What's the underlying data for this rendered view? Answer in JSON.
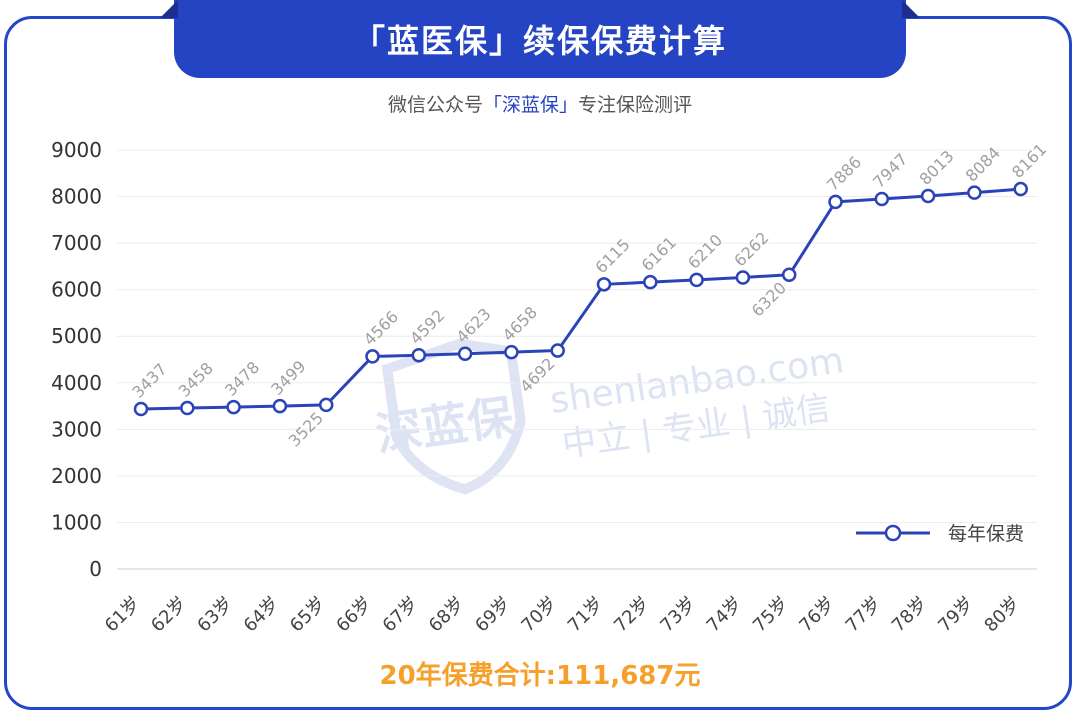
{
  "header": {
    "title": "「蓝医保」续保保费计算"
  },
  "subtitle": {
    "prefix": "微信公众号",
    "brand": "「深蓝保」",
    "suffix": "专注保险测评"
  },
  "watermark": {
    "logo_text": "深蓝保",
    "domain": "shenlanbao.com",
    "slogan": "中立 | 专业 | 诚信"
  },
  "footer": {
    "total": "20年保费合计:111,687元"
  },
  "colors": {
    "line": "#2a44b8",
    "accent": "#2544c4",
    "total": "#f5a02a"
  },
  "chart_data": {
    "type": "line",
    "categories": [
      "61岁",
      "62岁",
      "63岁",
      "64岁",
      "65岁",
      "66岁",
      "67岁",
      "68岁",
      "69岁",
      "70岁",
      "71岁",
      "72岁",
      "73岁",
      "74岁",
      "75岁",
      "76岁",
      "77岁",
      "78岁",
      "79岁",
      "80岁"
    ],
    "series": [
      {
        "name": "每年保费",
        "values": [
          3437,
          3458,
          3478,
          3499,
          3525,
          4566,
          4592,
          4623,
          4658,
          4692,
          6115,
          6161,
          6210,
          6262,
          6320,
          7886,
          7947,
          8013,
          8084,
          8161
        ]
      }
    ],
    "yticks": [
      0,
      1000,
      2000,
      3000,
      4000,
      5000,
      6000,
      7000,
      8000,
      9000
    ],
    "ylim": [
      0,
      9000
    ],
    "grid": true,
    "legend": "bottom-right"
  }
}
